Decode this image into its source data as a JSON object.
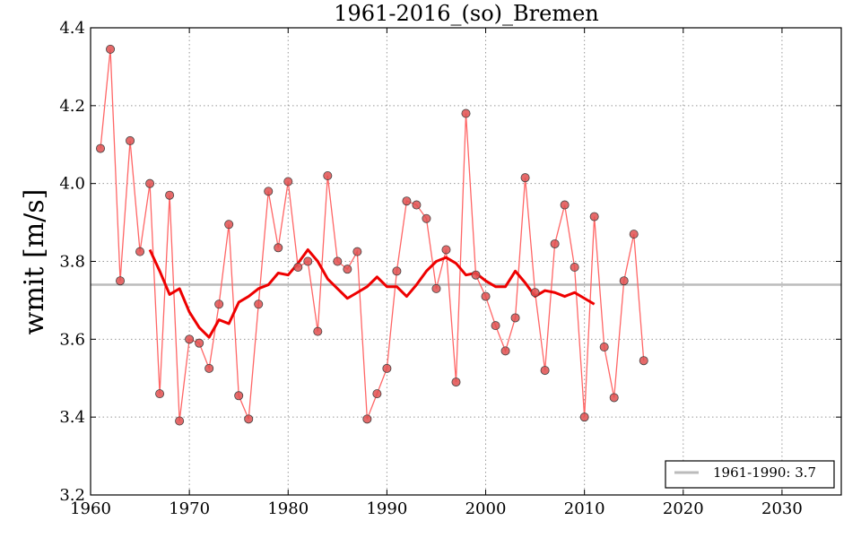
{
  "chart_data": {
    "type": "line",
    "title": "1961-2016_(so)_Bremen",
    "xlabel": "",
    "ylabel": "wmit [m/s]",
    "xlim": [
      1960,
      2036
    ],
    "ylim": [
      3.2,
      4.4
    ],
    "xticks": [
      1960,
      1970,
      1980,
      1990,
      2000,
      2010,
      2020,
      2030
    ],
    "yticks": [
      "3.2",
      "3.4",
      "3.6",
      "3.8",
      "4.0",
      "4.2",
      "4.4"
    ],
    "grid": true,
    "legend_position": "bottom-right",
    "series": [
      {
        "name": "",
        "style": "line-with-markers",
        "color": "#ff6666",
        "marker_color": "#e05050",
        "x": [
          1961,
          1962,
          1963,
          1964,
          1965,
          1966,
          1967,
          1968,
          1969,
          1970,
          1971,
          1972,
          1973,
          1974,
          1975,
          1976,
          1977,
          1978,
          1979,
          1980,
          1981,
          1982,
          1983,
          1984,
          1985,
          1986,
          1987,
          1988,
          1989,
          1990,
          1991,
          1992,
          1993,
          1994,
          1995,
          1996,
          1997,
          1998,
          1999,
          2000,
          2001,
          2002,
          2003,
          2004,
          2005,
          2006,
          2007,
          2008,
          2009,
          2010,
          2011,
          2012,
          2013,
          2014,
          2015,
          2016
        ],
        "y": [
          4.09,
          4.345,
          3.75,
          4.11,
          3.825,
          4.0,
          3.46,
          3.97,
          3.39,
          3.6,
          3.59,
          3.525,
          3.69,
          3.895,
          3.455,
          3.395,
          3.69,
          3.98,
          3.835,
          4.005,
          3.785,
          3.8,
          3.62,
          4.02,
          3.8,
          3.78,
          3.825,
          3.395,
          3.46,
          3.525,
          3.775,
          3.955,
          3.945,
          3.91,
          3.73,
          3.83,
          3.49,
          4.18,
          3.765,
          3.71,
          3.635,
          3.57,
          3.655,
          4.015,
          3.72,
          3.52,
          3.845,
          3.945,
          3.785,
          3.4,
          3.915,
          3.58,
          3.45,
          3.75,
          3.87,
          3.545
        ]
      },
      {
        "name": "",
        "style": "thick-line",
        "color": "#ee0000",
        "x": [
          1966,
          1967,
          1968,
          1969,
          1970,
          1971,
          1972,
          1973,
          1974,
          1975,
          1976,
          1977,
          1978,
          1979,
          1980,
          1981,
          1982,
          1983,
          1984,
          1985,
          1986,
          1987,
          1988,
          1989,
          1990,
          1991,
          1992,
          1993,
          1994,
          1995,
          1996,
          1997,
          1998,
          1999,
          2000,
          2001,
          2002,
          2003,
          2004,
          2005,
          2006,
          2007,
          2008,
          2009,
          2010,
          2011
        ],
        "y": [
          3.83,
          3.775,
          3.715,
          3.73,
          3.67,
          3.63,
          3.605,
          3.65,
          3.64,
          3.695,
          3.71,
          3.73,
          3.74,
          3.77,
          3.765,
          3.795,
          3.83,
          3.8,
          3.755,
          3.73,
          3.705,
          3.72,
          3.735,
          3.76,
          3.735,
          3.735,
          3.71,
          3.74,
          3.775,
          3.8,
          3.81,
          3.795,
          3.765,
          3.77,
          3.75,
          3.735,
          3.735,
          3.775,
          3.745,
          3.71,
          3.725,
          3.72,
          3.71,
          3.72,
          3.705,
          3.69
        ]
      },
      {
        "name": "1961-1990: 3.7",
        "style": "reference-line",
        "color": "#bbbbbb",
        "x": [
          1960,
          2036
        ],
        "y": [
          3.74,
          3.74
        ]
      }
    ],
    "legend": {
      "entries": [
        "1961-1990: 3.7"
      ]
    }
  }
}
